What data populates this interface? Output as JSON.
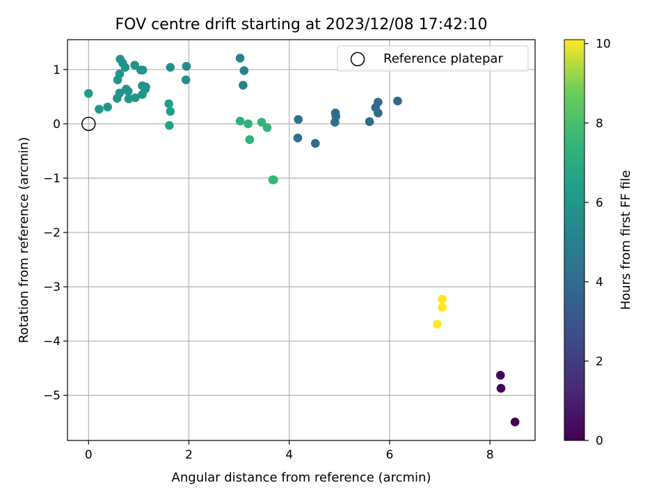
{
  "chart_data": {
    "type": "scatter",
    "title": "FOV centre drift starting at 2023/12/08 17:42:10",
    "xlabel": "Angular distance from reference (arcmin)",
    "ylabel": "Rotation from reference (arcmin)",
    "xlim": [
      -0.42,
      8.9
    ],
    "ylim": [
      -5.83,
      1.55
    ],
    "xticks": [
      0,
      2,
      4,
      6,
      8
    ],
    "yticks": [
      1,
      0,
      -1,
      -2,
      -3,
      -4,
      -5
    ],
    "grid": true,
    "legend": {
      "placement": "top-right",
      "entries": [
        "Reference platepar"
      ]
    },
    "reference_point": {
      "x": 0,
      "y": 0
    },
    "colorbar": {
      "label": "Hours from first FF file",
      "range": [
        0,
        10.1
      ],
      "ticks": [
        0,
        2,
        4,
        6,
        8,
        10
      ],
      "colormap": "viridis"
    },
    "points": [
      {
        "x": 8.5,
        "y": -5.49,
        "hours": 0.0
      },
      {
        "x": 8.22,
        "y": -4.87,
        "hours": 0.0
      },
      {
        "x": 8.21,
        "y": -4.63,
        "hours": 0.1
      },
      {
        "x": 6.16,
        "y": 0.42,
        "hours": 3.9
      },
      {
        "x": 5.77,
        "y": 0.4,
        "hours": 3.9
      },
      {
        "x": 5.72,
        "y": 0.3,
        "hours": 4.0
      },
      {
        "x": 5.77,
        "y": 0.2,
        "hours": 4.0
      },
      {
        "x": 5.6,
        "y": 0.04,
        "hours": 4.0
      },
      {
        "x": 4.92,
        "y": 0.2,
        "hours": 4.0
      },
      {
        "x": 4.93,
        "y": 0.14,
        "hours": 4.0
      },
      {
        "x": 4.91,
        "y": 0.03,
        "hours": 4.1
      },
      {
        "x": 4.52,
        "y": -0.36,
        "hours": 4.1
      },
      {
        "x": 4.18,
        "y": 0.08,
        "hours": 4.2
      },
      {
        "x": 4.17,
        "y": -0.26,
        "hours": 4.2
      },
      {
        "x": 3.02,
        "y": 1.21,
        "hours": 5.1
      },
      {
        "x": 3.1,
        "y": 0.98,
        "hours": 5.1
      },
      {
        "x": 3.08,
        "y": 0.71,
        "hours": 5.1
      },
      {
        "x": 1.95,
        "y": 1.06,
        "hours": 5.5
      },
      {
        "x": 1.94,
        "y": 0.81,
        "hours": 5.5
      },
      {
        "x": 1.63,
        "y": 1.04,
        "hours": 5.6
      },
      {
        "x": 0.63,
        "y": 1.19,
        "hours": 5.8
      },
      {
        "x": 0.68,
        "y": 1.12,
        "hours": 5.8
      },
      {
        "x": 0.73,
        "y": 1.04,
        "hours": 5.8
      },
      {
        "x": 0.92,
        "y": 1.08,
        "hours": 5.8
      },
      {
        "x": 1.04,
        "y": 0.99,
        "hours": 5.8
      },
      {
        "x": 1.08,
        "y": 0.99,
        "hours": 5.8
      },
      {
        "x": 0.62,
        "y": 0.92,
        "hours": 5.9
      },
      {
        "x": 0.58,
        "y": 0.81,
        "hours": 5.9
      },
      {
        "x": 1.07,
        "y": 0.7,
        "hours": 5.9
      },
      {
        "x": 1.14,
        "y": 0.68,
        "hours": 5.9
      },
      {
        "x": 1.13,
        "y": 0.64,
        "hours": 5.9
      },
      {
        "x": 0.75,
        "y": 0.64,
        "hours": 5.9
      },
      {
        "x": 0.79,
        "y": 0.6,
        "hours": 5.9
      },
      {
        "x": 0.62,
        "y": 0.57,
        "hours": 5.9
      },
      {
        "x": 1.07,
        "y": 0.54,
        "hours": 5.9
      },
      {
        "x": 0.57,
        "y": 0.47,
        "hours": 6.0
      },
      {
        "x": 0.8,
        "y": 0.46,
        "hours": 6.0
      },
      {
        "x": 0.93,
        "y": 0.48,
        "hours": 6.0
      },
      {
        "x": 0.38,
        "y": 0.31,
        "hours": 6.0
      },
      {
        "x": 0.21,
        "y": 0.27,
        "hours": 6.1
      },
      {
        "x": 0.0,
        "y": 0.56,
        "hours": 6.2
      },
      {
        "x": 1.6,
        "y": 0.37,
        "hours": 6.4
      },
      {
        "x": 1.63,
        "y": 0.23,
        "hours": 6.4
      },
      {
        "x": 1.61,
        "y": -0.03,
        "hours": 6.5
      },
      {
        "x": 3.02,
        "y": 0.05,
        "hours": 7.2
      },
      {
        "x": 3.18,
        "y": 0.0,
        "hours": 7.2
      },
      {
        "x": 3.21,
        "y": -0.29,
        "hours": 7.3
      },
      {
        "x": 3.45,
        "y": 0.03,
        "hours": 7.4
      },
      {
        "x": 3.56,
        "y": -0.07,
        "hours": 7.4
      },
      {
        "x": 3.69,
        "y": -1.03,
        "hours": 7.6
      },
      {
        "x": 3.67,
        "y": -1.03,
        "hours": 7.6
      },
      {
        "x": 7.05,
        "y": -3.23,
        "hours": 10.1
      },
      {
        "x": 7.05,
        "y": -3.38,
        "hours": 10.1
      },
      {
        "x": 6.95,
        "y": -3.69,
        "hours": 10.1
      }
    ]
  }
}
